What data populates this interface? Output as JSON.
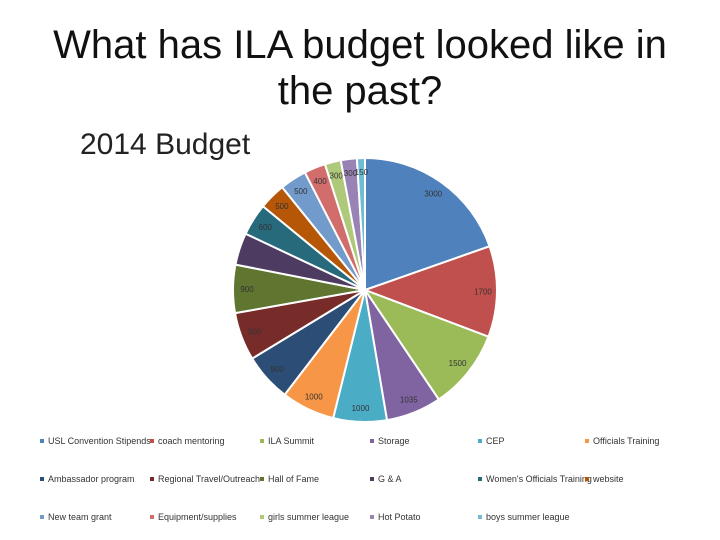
{
  "slide": {
    "title": "What has ILA budget looked like in the past?"
  },
  "chart_data": {
    "type": "pie",
    "title": "2014 Budget",
    "slices": [
      {
        "label": "USL Convention Stipends",
        "value": 3000,
        "color": "#4F81BD",
        "show_label": true
      },
      {
        "label": "coach mentoring",
        "value": 1700,
        "color": "#C0504D",
        "show_label": true
      },
      {
        "label": "ILA Summit",
        "value": 1500,
        "color": "#9BBB59",
        "show_label": true
      },
      {
        "label": "Storage",
        "value": 1035,
        "color": "#8064A2",
        "show_label": true
      },
      {
        "label": "CEP",
        "value": 1000,
        "color": "#4BACC6",
        "show_label": true
      },
      {
        "label": "Officials Training",
        "value": 1000,
        "color": "#F79646",
        "show_label": true
      },
      {
        "label": "Ambassador program",
        "value": 900,
        "color": "#2C4D75",
        "show_label": true
      },
      {
        "label": "Regional Travel/Outreach",
        "value": 900,
        "color": "#772C2A",
        "show_label": true
      },
      {
        "label": "Hall of Fame",
        "value": 900,
        "color": "#5F7530",
        "show_label": true
      },
      {
        "label": "G & A",
        "value": 600,
        "color": "#4D3B62",
        "show_label": false
      },
      {
        "label": "Women's Officials Training",
        "value": 600,
        "color": "#276A7C",
        "show_label": true
      },
      {
        "label": "website",
        "value": 500,
        "color": "#B65708",
        "show_label": true
      },
      {
        "label": "New team grant",
        "value": 500,
        "color": "#729ACA",
        "show_label": true
      },
      {
        "label": "Equipment/supplies",
        "value": 400,
        "color": "#D16E6C",
        "show_label": true
      },
      {
        "label": "girls summer league",
        "value": 300,
        "color": "#AFC97A",
        "show_label": true
      },
      {
        "label": "Hot Potato",
        "value": 300,
        "color": "#9983B5",
        "show_label": true
      },
      {
        "label": "boys summer league",
        "value": 150,
        "color": "#6FBCD5",
        "show_label": true
      }
    ]
  },
  "legend": {
    "items": [
      "USL Convention Stipends",
      "coach mentoring",
      "ILA Summit",
      "Storage",
      "CEP",
      "Officials Training",
      "Ambassador program",
      "Regional Travel/Outreach",
      "Hall of Fame",
      "G & A",
      "Women's Officials Training",
      "website",
      "New team grant",
      "Equipment/supplies",
      "girls summer league",
      "Hot Potato",
      "boys summer league"
    ]
  }
}
